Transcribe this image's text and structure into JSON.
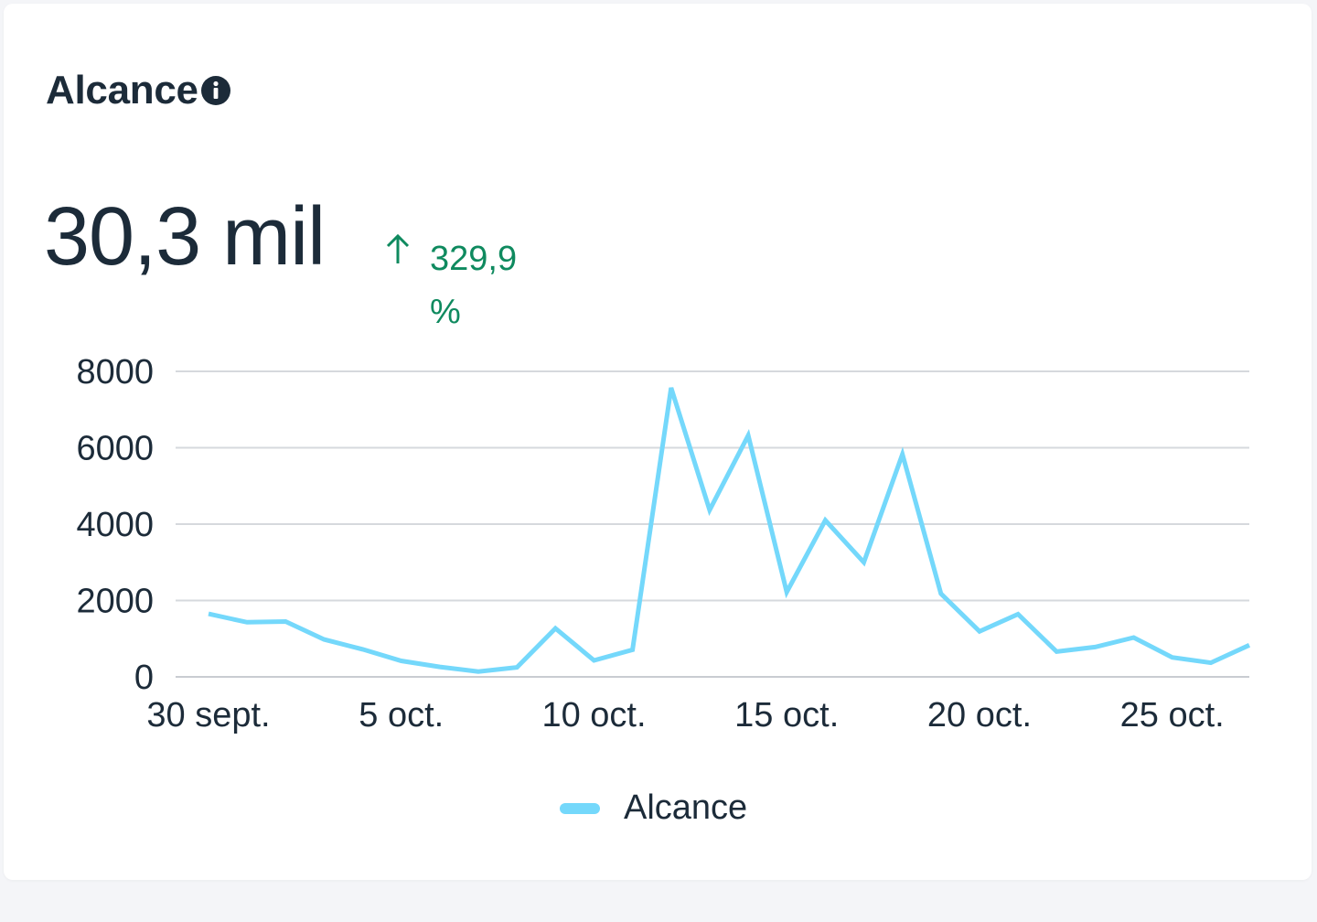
{
  "card": {
    "title": "Alcance",
    "info_icon": "info-icon",
    "metric_value": "30,3 mil",
    "delta": {
      "direction_icon": "arrow-up-icon",
      "value": "329,9 %",
      "color": "#0f8a5f"
    }
  },
  "colors": {
    "series": "#74d8fb",
    "grid": "#d6d9dd",
    "text": "#1c2b39"
  },
  "chart_data": {
    "type": "line",
    "title": "",
    "xlabel": "",
    "ylabel": "",
    "ylim": [
      0,
      8000
    ],
    "yticks": [
      "0",
      "2000",
      "4000",
      "6000",
      "8000"
    ],
    "xticks": [
      "30 sept.",
      "5 oct.",
      "10 oct.",
      "15 oct.",
      "20 oct.",
      "25 oct."
    ],
    "x": [
      "30 sept.",
      "1 oct.",
      "2 oct.",
      "3 oct.",
      "4 oct.",
      "5 oct.",
      "6 oct.",
      "7 oct.",
      "8 oct.",
      "9 oct.",
      "10 oct.",
      "11 oct.",
      "12 oct.",
      "13 oct.",
      "14 oct.",
      "15 oct.",
      "16 oct.",
      "17 oct.",
      "18 oct.",
      "19 oct.",
      "20 oct.",
      "21 oct.",
      "22 oct.",
      "23 oct.",
      "24 oct.",
      "25 oct.",
      "26 oct.",
      "27 oct."
    ],
    "series": [
      {
        "name": "Alcance",
        "values": [
          1650,
          1430,
          1450,
          980,
          720,
          420,
          260,
          140,
          250,
          1270,
          430,
          710,
          7570,
          4370,
          6320,
          2220,
          4100,
          3000,
          5830,
          2180,
          1190,
          1640,
          660,
          780,
          1030,
          510,
          370,
          830
        ]
      }
    ],
    "legend": "bottom",
    "grid": true
  }
}
